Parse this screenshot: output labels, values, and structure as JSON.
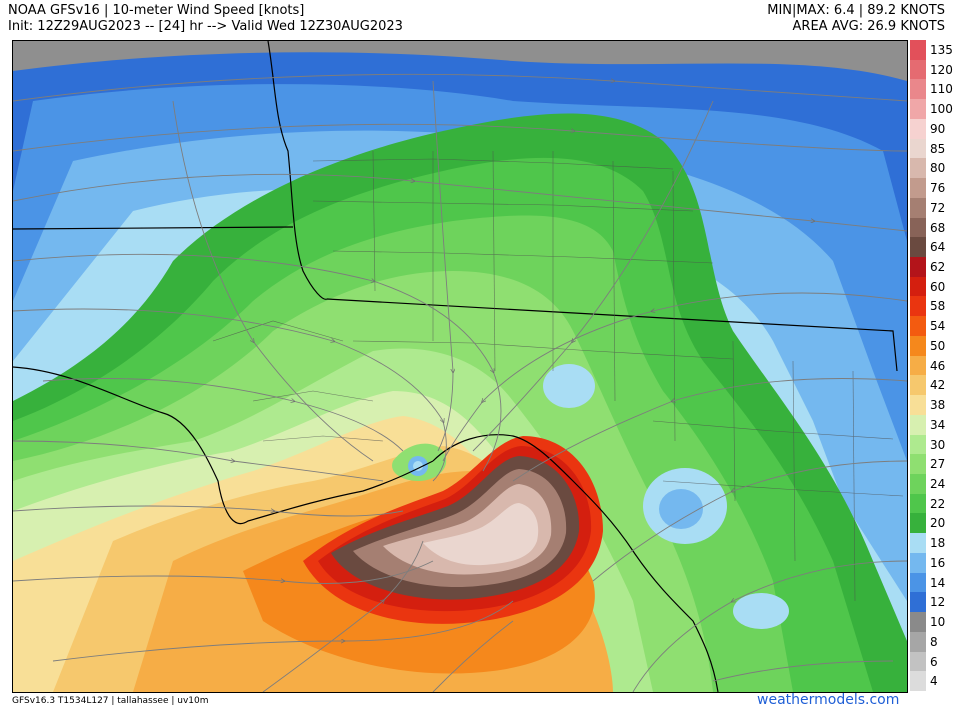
{
  "header": {
    "title": "NOAA GFSv16 | 10-meter Wind Speed [knots]",
    "subtitle": "Init: 12Z29AUG2023 -- [24] hr --> Valid Wed 12Z30AUG2023",
    "minmax": "MIN|MAX: 6.4 | 89.2 KNOTS",
    "area_avg": "AREA AVG: 26.9 KNOTS"
  },
  "footer": {
    "model_info": "GFSv16.3 T1534L127 | tallahassee | uv10m",
    "site": "weathermodels.com"
  },
  "colorbar": [
    {
      "label": "135",
      "color": "#e2505a"
    },
    {
      "label": "120",
      "color": "#e56b71"
    },
    {
      "label": "110",
      "color": "#ea878b"
    },
    {
      "label": "100",
      "color": "#f0a7a8"
    },
    {
      "label": "90",
      "color": "#f6d2d0"
    },
    {
      "label": "85",
      "color": "#ead6cf"
    },
    {
      "label": "80",
      "color": "#d8b8ad"
    },
    {
      "label": "76",
      "color": "#c29b8d"
    },
    {
      "label": "72",
      "color": "#a57f72"
    },
    {
      "label": "68",
      "color": "#886358"
    },
    {
      "label": "64",
      "color": "#6a4a40"
    },
    {
      "label": "62",
      "color": "#b3141a"
    },
    {
      "label": "60",
      "color": "#d41f0f"
    },
    {
      "label": "58",
      "color": "#ea3510"
    },
    {
      "label": "54",
      "color": "#f35b10"
    },
    {
      "label": "50",
      "color": "#f5881c"
    },
    {
      "label": "46",
      "color": "#f6ad46"
    },
    {
      "label": "42",
      "color": "#f6c86d"
    },
    {
      "label": "38",
      "color": "#f8df97"
    },
    {
      "label": "34",
      "color": "#d7f0b0"
    },
    {
      "label": "30",
      "color": "#aeea8f"
    },
    {
      "label": "27",
      "color": "#8fdf71"
    },
    {
      "label": "24",
      "color": "#6ed35c"
    },
    {
      "label": "22",
      "color": "#4fc64b"
    },
    {
      "label": "20",
      "color": "#37b13c"
    },
    {
      "label": "18",
      "color": "#a9ddf4"
    },
    {
      "label": "16",
      "color": "#74b8ef"
    },
    {
      "label": "14",
      "color": "#4b94e6"
    },
    {
      "label": "12",
      "color": "#2f6fd6"
    },
    {
      "label": "10",
      "color": "#8a8a8a"
    },
    {
      "label": "8",
      "color": "#a6a6a6"
    },
    {
      "label": "6",
      "color": "#c2c2c2"
    },
    {
      "label": "4",
      "color": "#dcdcdc"
    }
  ]
}
